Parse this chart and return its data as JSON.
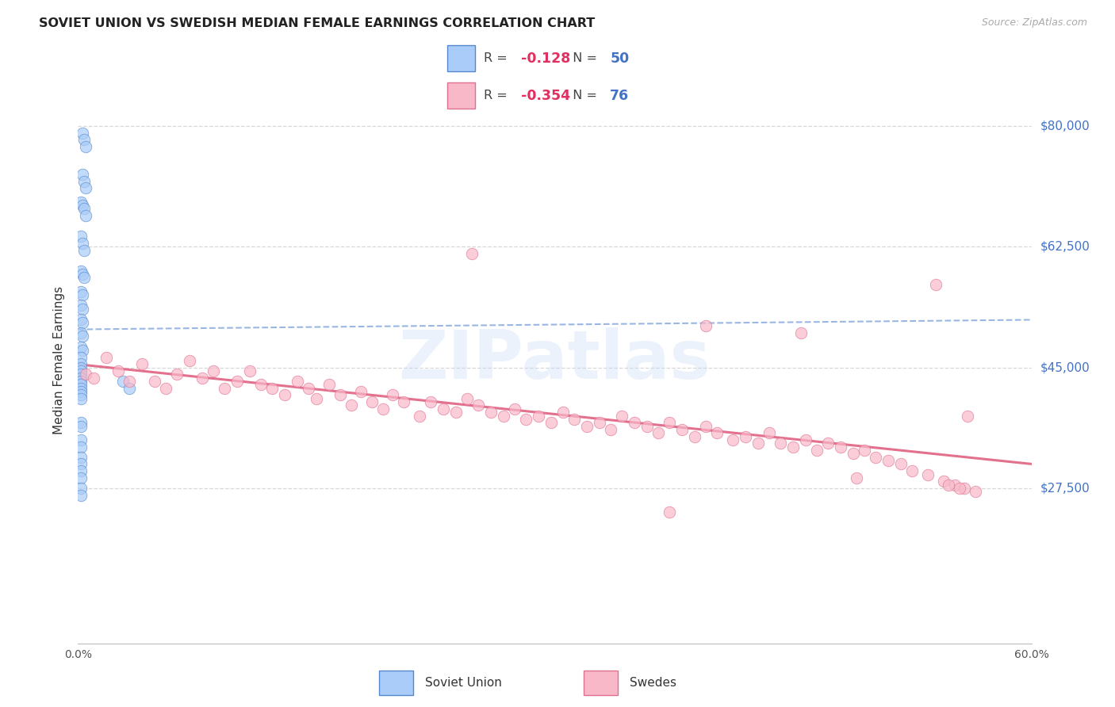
{
  "title": "SOVIET UNION VS SWEDISH MEDIAN FEMALE EARNINGS CORRELATION CHART",
  "source": "Source: ZipAtlas.com",
  "ylabel": "Median Female Earnings",
  "xlim": [
    0.0,
    0.6
  ],
  "ylim": [
    5000,
    87000
  ],
  "yticks": [
    27500,
    45000,
    62500,
    80000
  ],
  "ytick_labels": [
    "$27,500",
    "$45,000",
    "$62,500",
    "$80,000"
  ],
  "xtick_vals": [
    0.0,
    0.1,
    0.2,
    0.3,
    0.4,
    0.5,
    0.6
  ],
  "xtick_labels": [
    "0.0%",
    "",
    "",
    "",
    "",
    "",
    "60.0%"
  ],
  "background_color": "#ffffff",
  "grid_color": "#d8d8d8",
  "title_color": "#222222",
  "source_color": "#aaaaaa",
  "ylabel_color": "#333333",
  "right_tick_color": "#4472c4",
  "soviet_color": "#aaccf8",
  "soviet_edge_color": "#5588cc",
  "swedes_color": "#f8b8c8",
  "swedes_edge_color": "#e07090",
  "soviet_R": "-0.128",
  "soviet_N": "50",
  "swedes_R": "-0.354",
  "swedes_N": "76",
  "soviet_line_color": "#88aadd",
  "swedes_line_color": "#e06080",
  "legend_R_color": "#e03060",
  "legend_N_color": "#4472c4",
  "watermark_color": "#ccddf8",
  "soviet_x": [
    0.003,
    0.004,
    0.005,
    0.003,
    0.004,
    0.005,
    0.002,
    0.003,
    0.004,
    0.005,
    0.002,
    0.003,
    0.004,
    0.002,
    0.003,
    0.004,
    0.002,
    0.003,
    0.002,
    0.003,
    0.002,
    0.003,
    0.002,
    0.003,
    0.002,
    0.003,
    0.002,
    0.002,
    0.002,
    0.002,
    0.002,
    0.002,
    0.002,
    0.002,
    0.002,
    0.002,
    0.002,
    0.002,
    0.028,
    0.032,
    0.002,
    0.002,
    0.002,
    0.002,
    0.002,
    0.002,
    0.002,
    0.002,
    0.002,
    0.002
  ],
  "soviet_y": [
    79000,
    78000,
    77000,
    73000,
    72000,
    71000,
    69000,
    68500,
    68000,
    67000,
    64000,
    63000,
    62000,
    59000,
    58500,
    58000,
    56000,
    55500,
    54000,
    53500,
    52000,
    51500,
    50000,
    49500,
    48000,
    47500,
    46500,
    45500,
    45000,
    44500,
    44000,
    43500,
    43000,
    42500,
    42000,
    41500,
    41000,
    40500,
    43000,
    42000,
    37000,
    36500,
    34500,
    33500,
    32000,
    31000,
    30000,
    29000,
    27500,
    26500
  ],
  "swedes_x": [
    0.005,
    0.01,
    0.018,
    0.025,
    0.032,
    0.04,
    0.048,
    0.055,
    0.062,
    0.07,
    0.078,
    0.085,
    0.092,
    0.1,
    0.108,
    0.115,
    0.122,
    0.13,
    0.138,
    0.145,
    0.15,
    0.158,
    0.165,
    0.172,
    0.178,
    0.185,
    0.192,
    0.198,
    0.205,
    0.215,
    0.222,
    0.23,
    0.238,
    0.245,
    0.252,
    0.26,
    0.268,
    0.275,
    0.282,
    0.29,
    0.298,
    0.305,
    0.312,
    0.32,
    0.328,
    0.335,
    0.342,
    0.35,
    0.358,
    0.365,
    0.372,
    0.38,
    0.388,
    0.395,
    0.402,
    0.412,
    0.42,
    0.428,
    0.435,
    0.442,
    0.45,
    0.458,
    0.465,
    0.472,
    0.48,
    0.488,
    0.495,
    0.502,
    0.51,
    0.518,
    0.525,
    0.535,
    0.545,
    0.552,
    0.558,
    0.565
  ],
  "swedes_y": [
    44000,
    43500,
    46500,
    44500,
    43000,
    45500,
    43000,
    42000,
    44000,
    46000,
    43500,
    44500,
    42000,
    43000,
    44500,
    42500,
    42000,
    41000,
    43000,
    42000,
    40500,
    42500,
    41000,
    39500,
    41500,
    40000,
    39000,
    41000,
    40000,
    38000,
    40000,
    39000,
    38500,
    40500,
    39500,
    38500,
    38000,
    39000,
    37500,
    38000,
    37000,
    38500,
    37500,
    36500,
    37000,
    36000,
    38000,
    37000,
    36500,
    35500,
    37000,
    36000,
    35000,
    36500,
    35500,
    34500,
    35000,
    34000,
    35500,
    34000,
    33500,
    34500,
    33000,
    34000,
    33500,
    32500,
    33000,
    32000,
    31500,
    31000,
    30000,
    29500,
    28500,
    28000,
    27500,
    27000
  ],
  "swedes_outliers_x": [
    0.248,
    0.54,
    0.56,
    0.395,
    0.455,
    0.49,
    0.372,
    0.548,
    0.555
  ],
  "swedes_outliers_y": [
    61500,
    57000,
    38000,
    51000,
    50000,
    29000,
    24000,
    28000,
    27500
  ],
  "marker_size": 110,
  "marker_alpha": 0.7
}
